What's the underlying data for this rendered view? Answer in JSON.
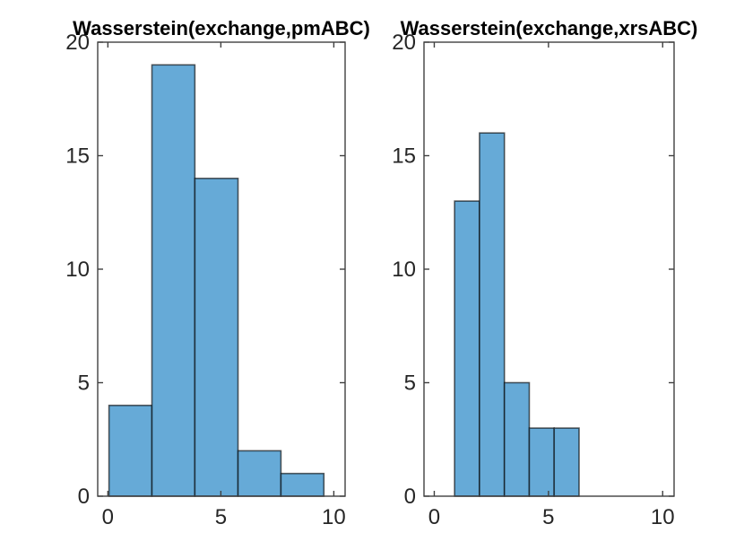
{
  "figure": {
    "background": "#ffffff"
  },
  "colors": {
    "bar_fill": "#66aad7",
    "bar_edge": "rgba(0,0,0,0.62)",
    "axis": "#404040",
    "tick_label": "#262626",
    "title": "#000000"
  },
  "chart_data": [
    {
      "type": "bar",
      "variant": "histogram",
      "title": "Wasserstein(exchange,pmABC)",
      "bin_edges": [
        0.05,
        1.95,
        3.85,
        5.76,
        7.66,
        9.56
      ],
      "counts": [
        4,
        19,
        14,
        2,
        1
      ],
      "xticks": [
        0,
        5,
        10
      ],
      "yticks": [
        0,
        5,
        10,
        15,
        20
      ],
      "xlim": [
        -0.45,
        10.5
      ],
      "ylim": [
        0,
        20
      ],
      "xlabel": "",
      "ylabel": "",
      "grid": false,
      "legend": null
    },
    {
      "type": "bar",
      "variant": "histogram",
      "title": "Wasserstein(exchange,xrsABC)",
      "bin_edges": [
        0.89,
        1.98,
        3.07,
        4.16,
        5.25,
        6.34
      ],
      "counts": [
        13,
        16,
        5,
        3,
        3
      ],
      "xticks": [
        0,
        5,
        10
      ],
      "yticks": [
        0,
        5,
        10,
        15,
        20
      ],
      "xlim": [
        -0.45,
        10.5
      ],
      "ylim": [
        0,
        20
      ],
      "xlabel": "",
      "ylabel": "",
      "grid": false,
      "legend": null
    }
  ]
}
